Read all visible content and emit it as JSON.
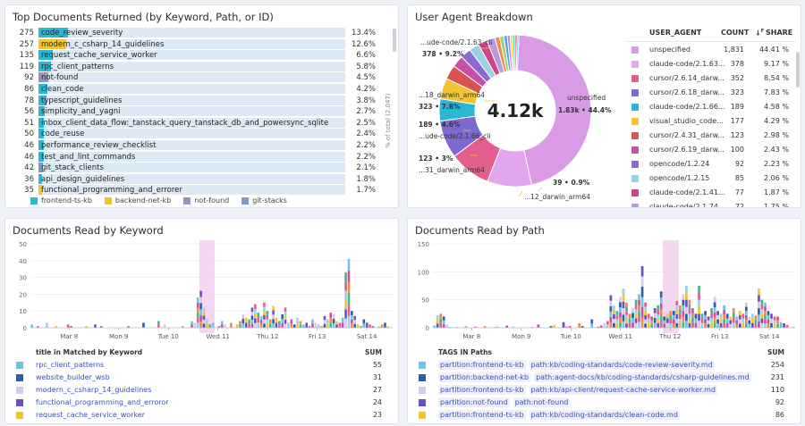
{
  "p1": {
    "title": "Top Documents Returned (by Keyword, Path, or ID)",
    "axis_label": "% of total (2,047)",
    "legend": [
      {
        "name": "frontend-ts-kb",
        "color": "#2bb7d8"
      },
      {
        "name": "backend-net-kb",
        "color": "#f2c430"
      },
      {
        "name": "not-found",
        "color": "#9b8fc8"
      },
      {
        "name": "git-stacks",
        "color": "#7b9cc7"
      }
    ],
    "rows": [
      {
        "count": "275",
        "label": "code_review_severity",
        "pct": "13.4%",
        "color": "#2bb7d8"
      },
      {
        "count": "257",
        "label": "modern_c_csharp_14_guidelines",
        "pct": "12.6%",
        "color": "#f2c430"
      },
      {
        "count": "135",
        "label": "request_cache_service_worker",
        "pct": "6.6%",
        "color": "#2bb7d8"
      },
      {
        "count": "119",
        "label": "rpc_client_patterns",
        "pct": "5.8%",
        "color": "#2bb7d8"
      },
      {
        "count": "92",
        "label": "not-found",
        "pct": "4.5%",
        "color": "#9b8fc8"
      },
      {
        "count": "86",
        "label": "clean_code",
        "pct": "4.2%",
        "color": "#2bb7d8"
      },
      {
        "count": "78",
        "label": "typescript_guidelines",
        "pct": "3.8%",
        "color": "#2bb7d8"
      },
      {
        "count": "56",
        "label": "simplicity_and_yagni",
        "pct": "2.7%",
        "color": "#2bb7d8"
      },
      {
        "count": "51",
        "label": "inbox_client_data_flow:_tanstack_query_tanstack_db_and_powersync_sqlite",
        "pct": "2.5%",
        "color": "#2bb7d8"
      },
      {
        "count": "50",
        "label": "code_reuse",
        "pct": "2.4%",
        "color": "#2bb7d8"
      },
      {
        "count": "46",
        "label": "performance_review_checklist",
        "pct": "2.2%",
        "color": "#2bb7d8"
      },
      {
        "count": "46",
        "label": "test_and_lint_commands",
        "pct": "2.2%",
        "color": "#2bb7d8"
      },
      {
        "count": "42",
        "label": "git_stack_clients",
        "pct": "2.1%",
        "color": "#7b9cc7"
      },
      {
        "count": "36",
        "label": "api_design_guidelines",
        "pct": "1.8%",
        "color": "#2bb7d8"
      },
      {
        "count": "35",
        "label": "functional_programming_and_errorer",
        "pct": "1.7%",
        "color": "#f2c430"
      }
    ]
  },
  "p2": {
    "title": "User Agent Breakdown",
    "total": "4.12k",
    "columns": {
      "agent": "USER_AGENT",
      "count": "COUNT",
      "share": "SHARE"
    },
    "pie_labels": [
      {
        "text": "...ude-code/2.1.63_cli",
        "value": "378 • 9.2%"
      },
      {
        "text": "...18_darwin_arm64",
        "value": "323 • 7.8%"
      },
      {
        "text": "189 • 4.6%",
        "value": ""
      },
      {
        "text": "...ude-code/2.1.66_cli",
        "value": ""
      },
      {
        "text": "123 • 3%",
        "value": ""
      },
      {
        "text": "...31_darwin_arm64",
        "value": ""
      },
      {
        "text": "unspecified",
        "value": "1.83k • 44.4%"
      },
      {
        "text": "39 • 0.9%",
        "value": ""
      },
      {
        "text": "...12_darwin_arm64",
        "value": ""
      }
    ],
    "rows": [
      {
        "name": "unspecified",
        "count": "1,831",
        "share": "44.41 %",
        "color": "#d99be6"
      },
      {
        "name": "claude-code/2.1.63...",
        "count": "378",
        "share": "9.17 %",
        "color": "#e2a6ee"
      },
      {
        "name": "cursor/2.6.14_darw...",
        "count": "352",
        "share": "8.54 %",
        "color": "#e35d8d"
      },
      {
        "name": "cursor/2.6.18_darw...",
        "count": "323",
        "share": "7.83 %",
        "color": "#7d69cf"
      },
      {
        "name": "claude-code/2.1.66...",
        "count": "189",
        "share": "4.58 %",
        "color": "#28b8d6"
      },
      {
        "name": "visual_studio_code...",
        "count": "177",
        "share": "4.29 %",
        "color": "#f2c430"
      },
      {
        "name": "cursor/2.4.31_darw...",
        "count": "123",
        "share": "2.98 %",
        "color": "#d9534f"
      },
      {
        "name": "cursor/2.6.19_darw...",
        "count": "100",
        "share": "2.43 %",
        "color": "#c74fa8"
      },
      {
        "name": "opencode/1.2.24",
        "count": "92",
        "share": "2.23 %",
        "color": "#8b6bd0"
      },
      {
        "name": "opencode/1.2.15",
        "count": "85",
        "share": "2.06 %",
        "color": "#9bd1e6"
      },
      {
        "name": "claude-code/2.1.41...",
        "count": "77",
        "share": "1.87 %",
        "color": "#d0458a"
      },
      {
        "name": "claude-code/2.1.74...",
        "count": "72",
        "share": "1.75 %",
        "color": "#b79be2"
      }
    ]
  },
  "p3": {
    "title": "Documents Read by Keyword",
    "col_name": "title in Matched by Keyword",
    "col_sum": "SUM",
    "rows": [
      {
        "name": "rpc_client_patterns",
        "sum": "55",
        "color": "#6fc3e0"
      },
      {
        "name": "website_builder_wsb",
        "sum": "31",
        "color": "#2d5fa8"
      },
      {
        "name": "modern_c_csharp_14_guidelines",
        "sum": "27",
        "color": "#d8c8ea"
      },
      {
        "name": "functional_programming_and_erroror",
        "sum": "24",
        "color": "#6a4fc2"
      },
      {
        "name": "request_cache_service_worker",
        "sum": "23",
        "color": "#f2c430"
      }
    ]
  },
  "p4": {
    "title": "Documents Read by Path",
    "col_name": "TAGS IN Paths",
    "col_sum": "SUM",
    "rows": [
      {
        "tag": "partition:frontend-ts-kb",
        "path": "path:kb/coding-standards/code-review-severity.md",
        "sum": "254",
        "color": "#6fc3e0"
      },
      {
        "tag": "partition:backend-net-kb",
        "path": "path:agent-docs/kb/coding-standards/csharp-guidelines.md",
        "sum": "231",
        "color": "#2d5fa8"
      },
      {
        "tag": "partition:frontend-ts-kb",
        "path": "path:kb/api-client/request-cache-service-worker.md",
        "sum": "110",
        "color": "#d8c8ea"
      },
      {
        "tag": "partition:not-found",
        "path": "path:not-found",
        "sum": "92",
        "color": "#6a4fc2"
      },
      {
        "tag": "partition:frontend-ts-kb",
        "path": "path:kb/coding-standards/clean-code.md",
        "sum": "86",
        "color": "#f2c430"
      }
    ]
  },
  "chart_data": [
    {
      "type": "bar",
      "title": "Top Documents Returned (by Keyword, Path, or ID)",
      "categories": [
        "code_review_severity",
        "modern_c_csharp_14_guidelines",
        "request_cache_service_worker",
        "rpc_client_patterns",
        "not-found",
        "clean_code",
        "typescript_guidelines",
        "simplicity_and_yagni",
        "inbox_client_data_flow:_tanstack_query_tanstack_db_and_powersync_sqlite",
        "code_reuse",
        "performance_review_checklist",
        "test_and_lint_commands",
        "git_stack_clients",
        "api_design_guidelines",
        "functional_programming_and_errorer"
      ],
      "values": [
        275,
        257,
        135,
        119,
        92,
        86,
        78,
        56,
        51,
        50,
        46,
        46,
        42,
        36,
        35
      ],
      "ylabel": "% of total (2,047)"
    },
    {
      "type": "pie",
      "title": "User Agent Breakdown",
      "categories": [
        "unspecified",
        "claude-code/2.1.63...",
        "cursor/2.6.14_darw...",
        "cursor/2.6.18_darw...",
        "claude-code/2.1.66...",
        "visual_studio_code...",
        "cursor/2.4.31_darw...",
        "cursor/2.6.19_darw...",
        "opencode/1.2.24",
        "opencode/1.2.15",
        "claude-code/2.1.41...",
        "claude-code/2.1.74..."
      ],
      "values": [
        1831,
        378,
        352,
        323,
        189,
        177,
        123,
        100,
        92,
        85,
        77,
        72
      ]
    },
    {
      "type": "bar",
      "title": "Documents Read by Keyword",
      "ylim": [
        0,
        50
      ],
      "yticks": [
        "0",
        "10",
        "20",
        "30",
        "40",
        "50"
      ],
      "xticks": [
        "Mar 8",
        "Mon 9",
        "Tue 10",
        "Wed 11",
        "Thu 12",
        "Fri 13",
        "Sat 14"
      ],
      "values": [
        2,
        0,
        1,
        0,
        0,
        3,
        0,
        0,
        1,
        0,
        0,
        0,
        2,
        1,
        0,
        0,
        0,
        0,
        1,
        0,
        0,
        2,
        0,
        1,
        0,
        0,
        0,
        0,
        0,
        0,
        0,
        0,
        1,
        0,
        0,
        0,
        0,
        3,
        0,
        0,
        0,
        0,
        4,
        0,
        2,
        0,
        0,
        0,
        0,
        0,
        1,
        0,
        0,
        4,
        3,
        18,
        22,
        12,
        5,
        2,
        3,
        0,
        1,
        4,
        2,
        0,
        3,
        0,
        2,
        4,
        8,
        6,
        5,
        12,
        14,
        9,
        7,
        15,
        10,
        5,
        13,
        6,
        4,
        8,
        12,
        3,
        5,
        2,
        6,
        4,
        2,
        3,
        1,
        5,
        3,
        2,
        1,
        7,
        5,
        9,
        8,
        4,
        3,
        6,
        33,
        41,
        10,
        7,
        2,
        1,
        5,
        3,
        2,
        1,
        0,
        1,
        2,
        3,
        1,
        0
      ]
    },
    {
      "type": "bar",
      "title": "Documents Read by Path",
      "ylim": [
        0,
        150
      ],
      "yticks": [
        "0",
        "50",
        "100",
        "150"
      ],
      "xticks": [
        "Mar 8",
        "Mon 9",
        "Tue 10",
        "Wed 11",
        "Thu 12",
        "Fri 13",
        "Sat 14"
      ],
      "values": [
        4,
        22,
        25,
        20,
        6,
        2,
        0,
        1,
        0,
        0,
        3,
        0,
        0,
        2,
        1,
        0,
        3,
        0,
        0,
        1,
        2,
        0,
        0,
        4,
        0,
        2,
        0,
        0,
        0,
        0,
        0,
        1,
        0,
        6,
        0,
        0,
        0,
        3,
        5,
        0,
        0,
        10,
        2,
        3,
        0,
        0,
        8,
        3,
        0,
        0,
        15,
        0,
        2,
        4,
        8,
        12,
        58,
        40,
        30,
        55,
        70,
        45,
        25,
        35,
        50,
        60,
        110,
        45,
        25,
        20,
        35,
        40,
        65,
        20,
        25,
        30,
        30,
        48,
        40,
        60,
        75,
        50,
        35,
        25,
        75,
        25,
        30,
        20,
        35,
        55,
        30,
        25,
        40,
        25,
        20,
        35,
        20,
        30,
        25,
        45,
        20,
        25,
        22,
        70,
        50,
        45,
        30,
        25,
        20,
        20,
        10,
        8,
        5,
        0,
        2
      ]
    }
  ]
}
